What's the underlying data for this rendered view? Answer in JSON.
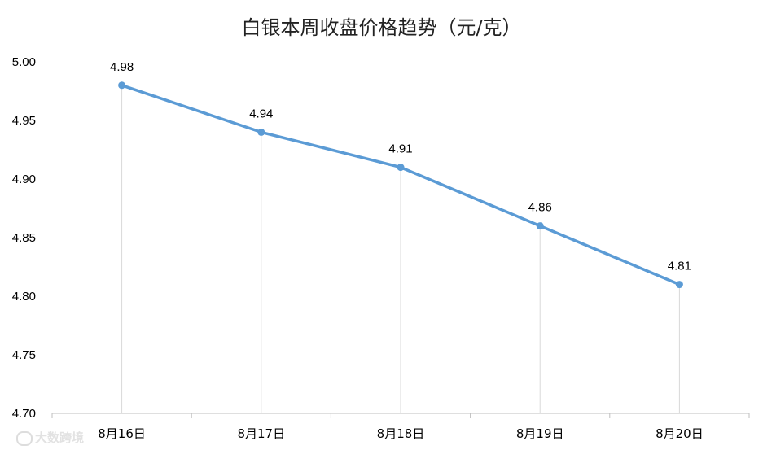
{
  "chart_data": {
    "type": "line",
    "title": "白银本周收盘价格趋势（元/克）",
    "categories": [
      "8月16日",
      "8月17日",
      "8月18日",
      "8月19日",
      "8月20日"
    ],
    "series": [
      {
        "values": [
          4.98,
          4.94,
          4.91,
          4.86,
          4.81
        ],
        "color": "#5b9bd5"
      }
    ],
    "data_labels": [
      "4.98",
      "4.94",
      "4.91",
      "4.86",
      "4.81"
    ],
    "ylim": [
      4.7,
      5.0
    ],
    "yticks": [
      "4.70",
      "4.75",
      "4.80",
      "4.85",
      "4.90",
      "4.95",
      "5.00"
    ],
    "drop_lines": true,
    "gridlines": false
  },
  "watermark": {
    "text": "大数跨境",
    "icon": "logo-icon"
  },
  "colors": {
    "line": "#5b9bd5",
    "axis": "#bfbfbf",
    "drop_line": "#d9d9d9",
    "text": "#000000"
  }
}
